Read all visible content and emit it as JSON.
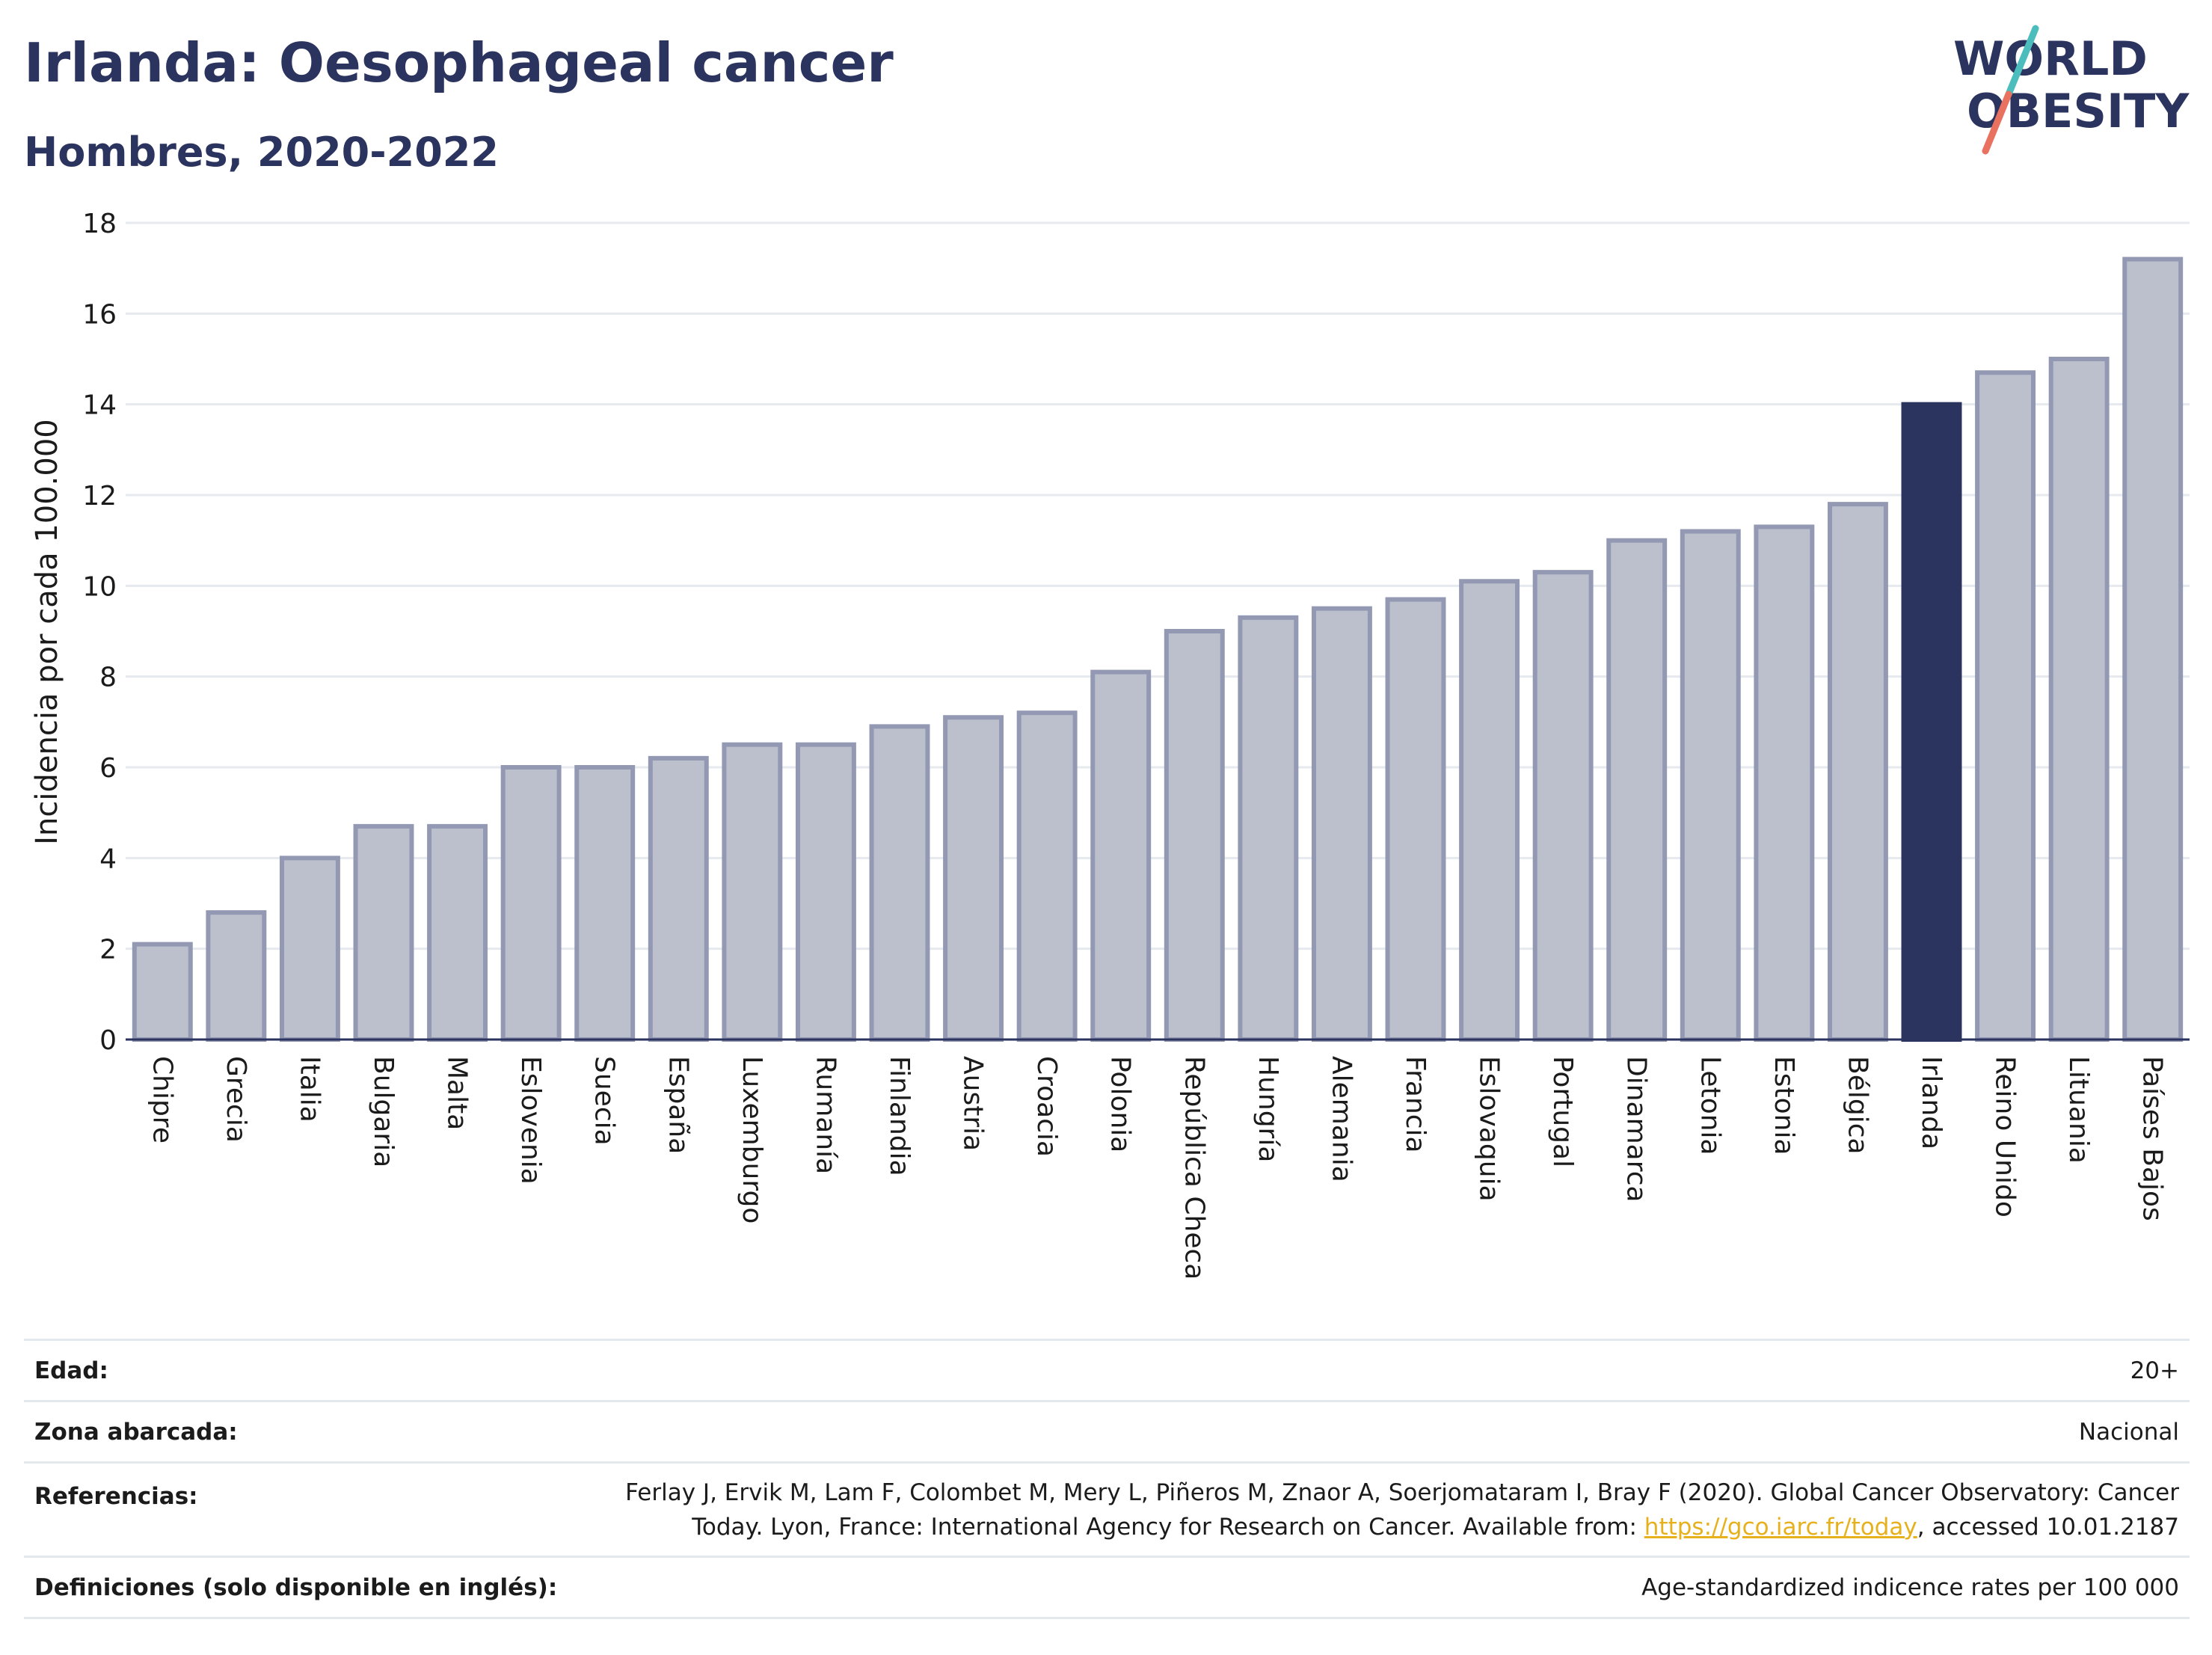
{
  "header": {
    "title": "Irlanda: Oesophageal cancer",
    "subtitle": "Hombres, 2020-2022",
    "logo_line1": "WORLD",
    "logo_line2": "OBESITY"
  },
  "chart_data": {
    "type": "bar",
    "title": "Irlanda: Oesophageal cancer",
    "subtitle": "Hombres, 2020-2022",
    "ylabel": "Incidencia por cada 100.000",
    "xlabel": "",
    "ylim": [
      0,
      18
    ],
    "yticks": [
      0,
      2,
      4,
      6,
      8,
      10,
      12,
      14,
      16,
      18
    ],
    "grid": true,
    "highlight": "Irlanda",
    "categories": [
      "Chipre",
      "Grecia",
      "Italia",
      "Bulgaria",
      "Malta",
      "Eslovenia",
      "Suecia",
      "España",
      "Luxemburgo",
      "Rumanía",
      "Finlandia",
      "Austria",
      "Croacia",
      "Polonia",
      "República Checa",
      "Hungría",
      "Alemania",
      "Francia",
      "Eslovaquia",
      "Portugal",
      "Dinamarca",
      "Letonia",
      "Estonia",
      "Bélgica",
      "Irlanda",
      "Reino Unido",
      "Lituania",
      "Países Bajos"
    ],
    "values": [
      2.1,
      2.8,
      4.0,
      4.7,
      4.7,
      6.0,
      6.0,
      6.2,
      6.5,
      6.5,
      6.9,
      7.1,
      7.2,
      8.1,
      9.0,
      9.3,
      9.5,
      9.7,
      10.1,
      10.3,
      11.0,
      11.2,
      11.3,
      11.8,
      14.0,
      14.7,
      15.0,
      17.2
    ]
  },
  "colors": {
    "bar_fill": "#bcc0cd",
    "bar_stroke": "#9398b3",
    "highlight": "#2b335f",
    "grid": "#e6e9ee",
    "axis": "#2b335f",
    "logo_teal": "#4bbdbd",
    "logo_coral": "#e8715f"
  },
  "info": {
    "age_label": "Edad:",
    "age_value": "20+",
    "area_label": "Zona abarcada:",
    "area_value": "Nacional",
    "refs_label": "Referencias:",
    "refs_text_1": "Ferlay J, Ervik M, Lam F, Colombet M, Mery L, Piñeros M, Znaor A, Soerjomataram I, Bray F (2020). Global Cancer Observatory: Cancer",
    "refs_text_2": "Today. Lyon, France: International Agency for Research on Cancer. Available from: ",
    "refs_link": "https://gco.iarc.fr/today",
    "refs_text_3": ", accessed 10.01.2187",
    "defs_label": "Definiciones (solo disponible en inglés):",
    "defs_value": "Age-standardized indicence rates per 100 000"
  }
}
